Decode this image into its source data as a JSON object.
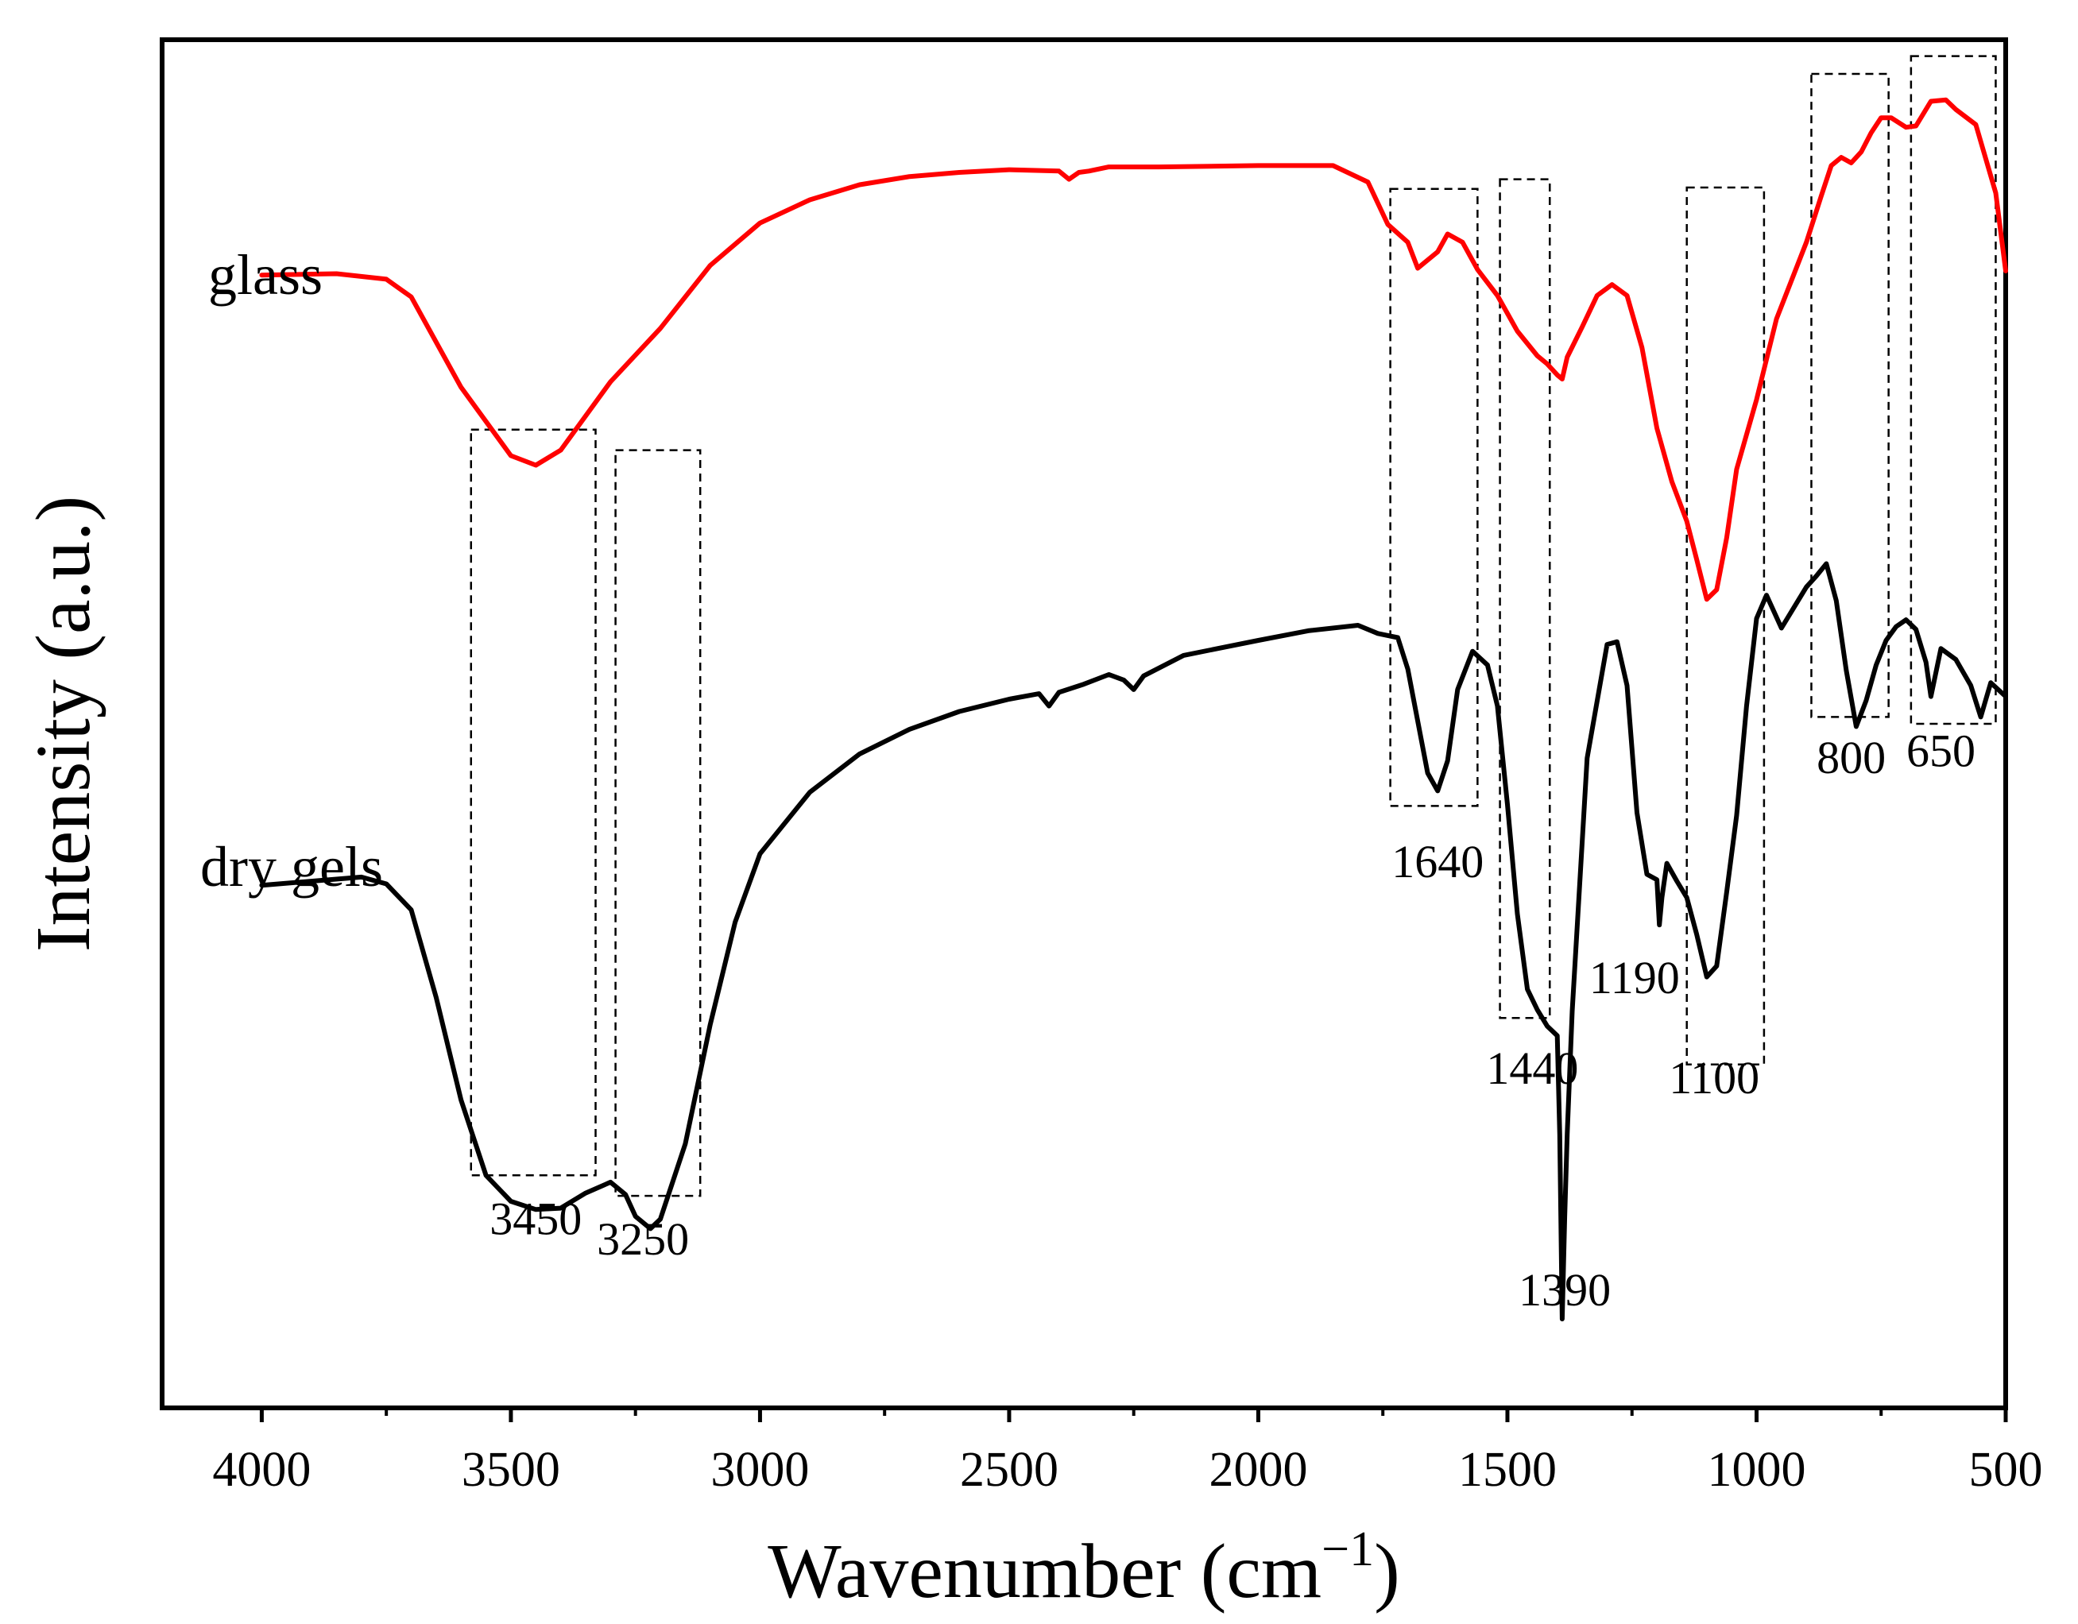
{
  "chart_data": {
    "type": "line",
    "title": "",
    "xlabel": "Wavenumber (cm",
    "xlabel_sup": "−1",
    "xlabel_close": ")",
    "ylabel": "Intensity (a.u.)",
    "x_reversed": true,
    "xlim": [
      4200,
      500
    ],
    "ylim": [
      0,
      100
    ],
    "x_ticks": [
      4000,
      3500,
      3000,
      2500,
      2000,
      1500,
      1000,
      500
    ],
    "x_tick_labels": [
      "4000",
      "3500",
      "3000",
      "2500",
      "2000",
      "1500",
      "1000",
      "500"
    ],
    "y_ticks_shown": false,
    "series": [
      {
        "name": "glass",
        "color": "#ff0000",
        "x": [
          4000,
          3850,
          3750,
          3700,
          3600,
          3500,
          3450,
          3400,
          3300,
          3200,
          3100,
          3000,
          2900,
          2800,
          2700,
          2600,
          2500,
          2400,
          2380,
          2360,
          2340,
          2300,
          2200,
          2000,
          1850,
          1780,
          1740,
          1700,
          1680,
          1640,
          1620,
          1590,
          1560,
          1520,
          1480,
          1440,
          1420,
          1400,
          1390,
          1380,
          1350,
          1320,
          1290,
          1260,
          1230,
          1200,
          1170,
          1140,
          1120,
          1100,
          1080,
          1060,
          1040,
          1000,
          960,
          900,
          870,
          850,
          830,
          810,
          790,
          770,
          750,
          730,
          700,
          680,
          650,
          620,
          600,
          560,
          520,
          500
        ],
        "y": [
          82.8,
          82.9,
          82.5,
          81.2,
          74.6,
          69.6,
          68.9,
          70.0,
          75.0,
          78.9,
          83.5,
          86.6,
          88.3,
          89.4,
          90.0,
          90.3,
          90.5,
          90.4,
          89.8,
          90.3,
          90.4,
          90.7,
          90.7,
          90.8,
          90.8,
          89.6,
          86.5,
          85.2,
          83.3,
          84.5,
          85.8,
          85.2,
          83.2,
          81.3,
          78.7,
          76.9,
          76.3,
          75.5,
          75.2,
          76.8,
          79.0,
          81.3,
          82.1,
          81.3,
          77.5,
          71.6,
          67.7,
          64.8,
          62.0,
          59.1,
          59.8,
          63.6,
          68.6,
          73.7,
          79.6,
          85.2,
          88.6,
          90.8,
          91.4,
          91.0,
          91.8,
          93.2,
          94.3,
          94.3,
          93.6,
          93.7,
          95.5,
          95.6,
          94.9,
          93.8,
          88.8,
          83.1
        ]
      },
      {
        "name": "dry gels",
        "color": "#000000",
        "x": [
          4000,
          3800,
          3750,
          3700,
          3650,
          3600,
          3550,
          3500,
          3450,
          3400,
          3350,
          3300,
          3270,
          3250,
          3220,
          3200,
          3150,
          3100,
          3050,
          3000,
          2900,
          2800,
          2700,
          2600,
          2500,
          2440,
          2420,
          2400,
          2350,
          2300,
          2270,
          2250,
          2230,
          2150,
          2000,
          1900,
          1800,
          1760,
          1720,
          1700,
          1680,
          1660,
          1640,
          1620,
          1600,
          1570,
          1540,
          1520,
          1500,
          1480,
          1460,
          1440,
          1420,
          1400,
          1395,
          1390,
          1385,
          1380,
          1370,
          1340,
          1300,
          1280,
          1260,
          1240,
          1220,
          1200,
          1195,
          1190,
          1180,
          1160,
          1140,
          1120,
          1100,
          1080,
          1060,
          1040,
          1020,
          1000,
          980,
          950,
          900,
          880,
          860,
          840,
          820,
          800,
          780,
          760,
          740,
          720,
          700,
          680,
          660,
          650,
          630,
          600,
          570,
          550,
          530,
          500
        ],
        "y": [
          38.2,
          38.8,
          38.3,
          36.4,
          30.0,
          22.5,
          17.0,
          15.1,
          14.5,
          14.6,
          15.7,
          16.5,
          15.6,
          14.0,
          13.1,
          13.8,
          19.3,
          28.0,
          35.5,
          40.5,
          45.0,
          47.8,
          49.6,
          50.9,
          51.8,
          52.2,
          51.3,
          52.3,
          52.9,
          53.6,
          53.2,
          52.5,
          53.5,
          55.0,
          56.1,
          56.8,
          57.2,
          56.6,
          56.3,
          54.0,
          50.2,
          46.4,
          45.1,
          47.3,
          52.5,
          55.3,
          54.3,
          51.3,
          44.1,
          36.1,
          30.6,
          29.1,
          27.9,
          27.2,
          20.0,
          6.5,
          14.0,
          20.0,
          29.0,
          47.5,
          55.8,
          56.0,
          52.8,
          43.5,
          39.0,
          38.6,
          35.3,
          37.3,
          39.8,
          38.5,
          37.3,
          34.6,
          31.5,
          32.3,
          37.7,
          43.3,
          51.3,
          57.7,
          59.4,
          57.0,
          60.0,
          60.8,
          61.7,
          59.0,
          53.9,
          49.8,
          51.7,
          54.3,
          56.1,
          57.1,
          57.6,
          56.9,
          54.5,
          52.0,
          55.5,
          54.7,
          52.8,
          50.5,
          53.0,
          52.0
        ]
      }
    ],
    "series_labels": [
      {
        "text": "glass",
        "color": "#ff0000"
      },
      {
        "text": "dry gels",
        "color": "#000000"
      }
    ],
    "annotations": [
      {
        "label": "3450",
        "box_x": [
          3580,
          3330
        ],
        "box_y": [
          17.0,
          71.5
        ],
        "label_x": 3450,
        "label_y": 12.7
      },
      {
        "label": "3250",
        "box_x": [
          3290,
          3120
        ],
        "box_y": [
          15.5,
          70.0
        ],
        "label_x": 3235,
        "label_y": 11.2
      },
      {
        "label": "1640",
        "box_x": [
          1735,
          1560
        ],
        "box_y": [
          44.0,
          89.1
        ],
        "label_x": 1640,
        "label_y": 38.8
      },
      {
        "label": "1440",
        "box_x": [
          1515,
          1415
        ],
        "box_y": [
          28.5,
          89.8
        ],
        "label_x": 1450,
        "label_y": 23.7
      },
      {
        "label": "1390",
        "box_x": null,
        "box_y": null,
        "label_x": 1385,
        "label_y": 7.5
      },
      {
        "label": "1190",
        "box_x": null,
        "box_y": null,
        "label_x": 1245,
        "label_y": 30.3
      },
      {
        "label": "1100",
        "box_x": [
          1140,
          985
        ],
        "box_y": [
          25.1,
          89.2
        ],
        "label_x": 1085,
        "label_y": 23.0
      },
      {
        "label": "800",
        "box_x": [
          890,
          735
        ],
        "box_y": [
          50.5,
          97.5
        ],
        "label_x": 810,
        "label_y": 46.4
      },
      {
        "label": "650",
        "box_x": [
          690,
          520
        ],
        "box_y": [
          50.0,
          98.8
        ],
        "label_x": 630,
        "label_y": 46.9
      }
    ]
  }
}
